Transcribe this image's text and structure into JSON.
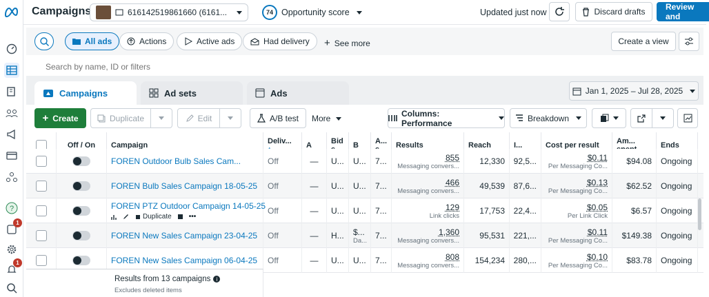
{
  "app": {
    "title": "Campaigns",
    "account_id": "616142519861660 (6161...",
    "opportunity_score": "74",
    "opportunity_label": "Opportunity score",
    "updated": "Updated just now",
    "discard": "Discard drafts",
    "review": "Review and"
  },
  "filters": {
    "all_ads": "All ads",
    "actions": "Actions",
    "active_ads": "Active ads",
    "had_delivery": "Had delivery",
    "see_more": "See more",
    "create_view": "Create a view"
  },
  "search": {
    "placeholder": "Search by name, ID or filters"
  },
  "tabs": [
    {
      "label": "Campaigns"
    },
    {
      "label": "Ad sets"
    },
    {
      "label": "Ads"
    }
  ],
  "date_range": "Jan 1, 2025 – Jul 28, 2025",
  "toolbar": {
    "create": "Create",
    "duplicate": "Duplicate",
    "edit": "Edit",
    "ab_test": "A/B test",
    "more": "More",
    "columns": "Columns: Performance",
    "breakdown": "Breakdown"
  },
  "columns": {
    "off_on": "Off / On",
    "campaign": "Campaign",
    "delivery": "Deliv...",
    "a": "A",
    "bid": "Bid s...",
    "b": "B",
    "as": "A... s...",
    "results": "Results",
    "reach": "Reach",
    "impr": "I...",
    "cpr": "Cost per result",
    "amount": "Am... spent",
    "ends": "Ends"
  },
  "rows": [
    {
      "name": "FOREN Outdoor Bulb Sales Cam...",
      "delivery": "Off",
      "a": "—",
      "bid": "U...",
      "b": "U...",
      "as": "7...",
      "results": "855",
      "results_sub": "Messaging convers...",
      "reach": "12,330",
      "impr": "92,5...",
      "cpr": "$0.11",
      "cpr_sub": "Per Messaging Co...",
      "spent": "$94.08",
      "ends": "Ongoing"
    },
    {
      "name": "FOREN Bulb Sales Campaign 18-05-25",
      "delivery": "Off",
      "a": "—",
      "bid": "U...",
      "b": "U...",
      "as": "7...",
      "results": "466",
      "results_sub": "Messaging convers...",
      "reach": "49,539",
      "impr": "87,6...",
      "cpr": "$0.13",
      "cpr_sub": "Per Messaging Co...",
      "spent": "$62.52",
      "ends": "Ongoing"
    },
    {
      "name": "FOREN PTZ Outdoor Campaign 14-05-25",
      "delivery": "Off",
      "a": "—",
      "bid": "U...",
      "b": "U...",
      "as": "7...",
      "results": "129",
      "results_sub": "Link clicks",
      "reach": "17,753",
      "impr": "22,4...",
      "cpr": "$0.05",
      "cpr_sub": "Per Link Click",
      "spent": "$6.57",
      "ends": "Ongoing",
      "hover_duplicate": "Duplicate"
    },
    {
      "name": "FOREN New Sales Campaign 23-04-25",
      "delivery": "Off",
      "a": "—",
      "bid": "H...",
      "b": "$...",
      "b_sub": "Da...",
      "as": "7...",
      "results": "1,360",
      "results_sub": "Messaging convers...",
      "reach": "95,531",
      "impr": "221,...",
      "cpr": "$0.11",
      "cpr_sub": "Per Messaging Co...",
      "spent": "$149.38",
      "ends": "Ongoing"
    },
    {
      "name": "FOREN New Sales Campaign 06-04-25",
      "delivery": "Off",
      "a": "—",
      "bid": "U...",
      "b": "U...",
      "as": "7...",
      "results": "808",
      "results_sub": "Messaging convers...",
      "reach": "154,234",
      "impr": "280,...",
      "cpr": "$0.10",
      "cpr_sub": "Per Messaging Co...",
      "spent": "$83.78",
      "ends": "Ongoing"
    }
  ],
  "footer": {
    "results": "Results from 13 campaigns",
    "excludes": "Excludes deleted items"
  },
  "rail_badges": [
    "1",
    "1"
  ],
  "colors": {
    "primary": "#0a78be",
    "create": "#1e7e3a"
  }
}
